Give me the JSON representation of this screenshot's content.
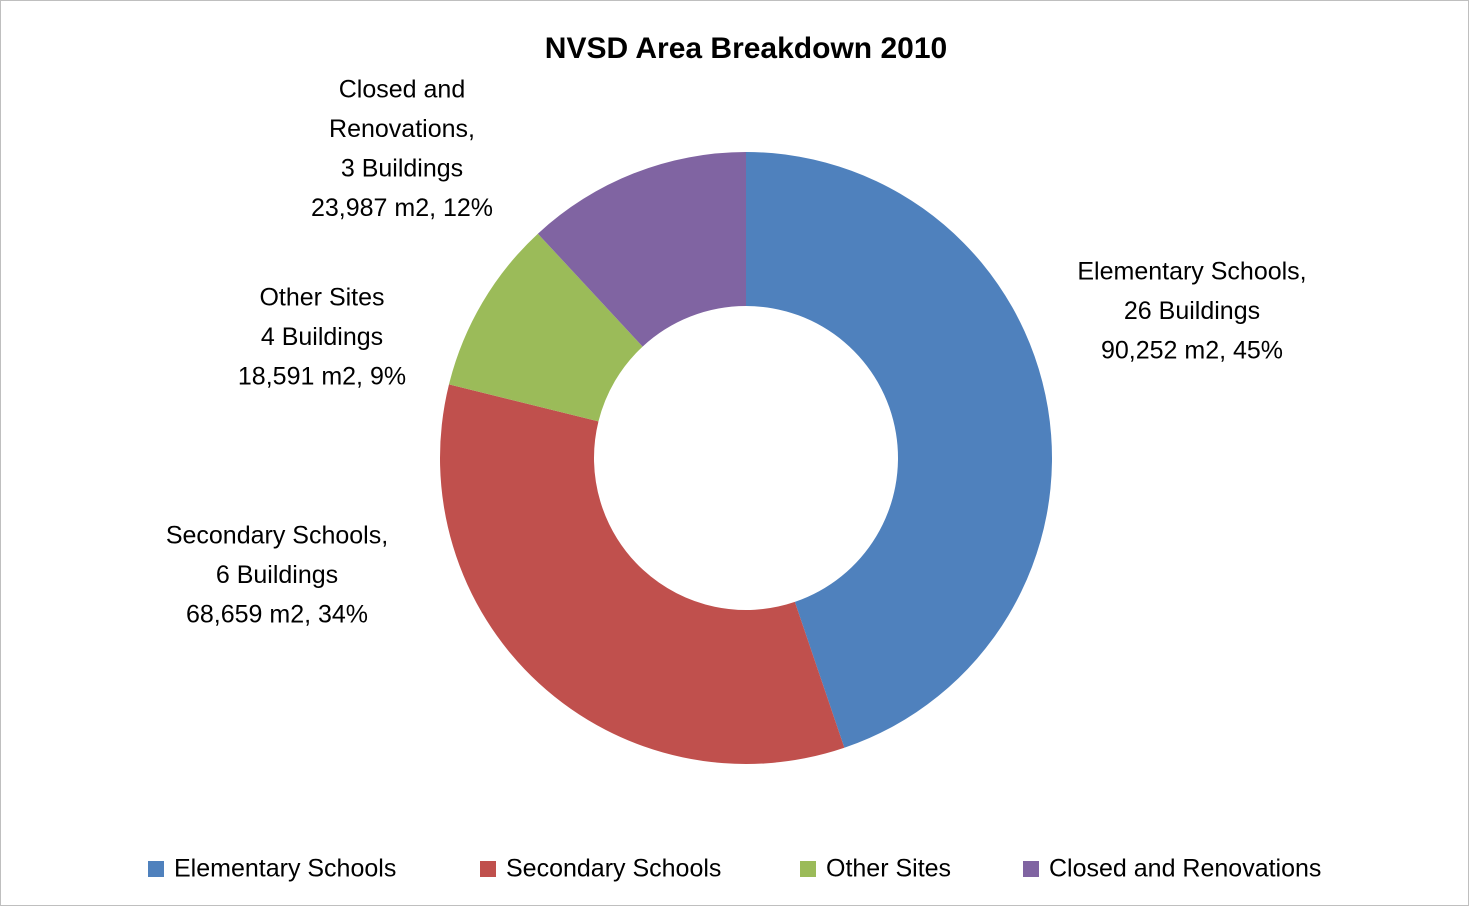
{
  "chart_data": {
    "type": "donut",
    "title": "NVSD Area Breakdown 2010",
    "categories": [
      "Elementary Schools",
      "Secondary Schools",
      "Other Sites",
      "Closed and Renovations"
    ],
    "values": [
      90252,
      68659,
      18591,
      23987
    ],
    "value_labels": [
      "90,252 m2, 45%",
      "68,659 m2, 34%",
      "18,591 m2, 9%",
      "23,987 m2, 12%"
    ],
    "label_lines": [
      [
        "Elementary Schools,",
        "26 Buildings"
      ],
      [
        "Secondary Schools,",
        "6 Buildings"
      ],
      [
        "Other Sites",
        "4 Buildings"
      ],
      [
        "Closed and",
        "Renovations,",
        "3 Buildings"
      ]
    ],
    "colors": [
      "#4f81bd",
      "#c0504d",
      "#9bbb59",
      "#8064a2"
    ],
    "legend": "bottom"
  }
}
